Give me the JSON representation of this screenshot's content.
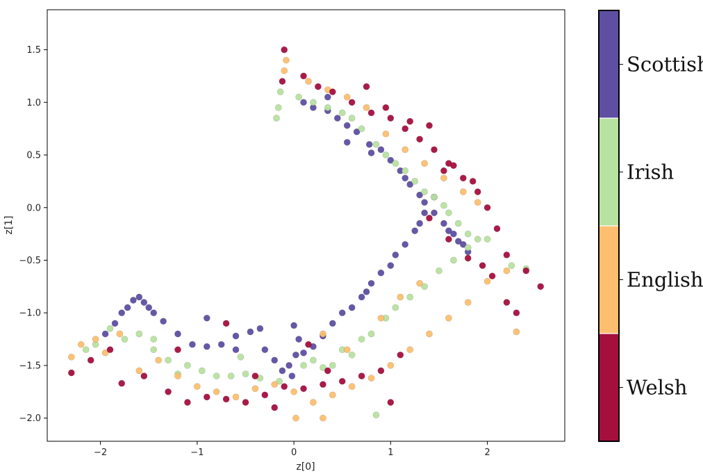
{
  "chart_data": {
    "type": "scatter",
    "title": "",
    "xlabel": "z[0]",
    "ylabel": "z[1]",
    "xlim": [
      -2.55,
      2.8
    ],
    "ylim": [
      -2.22,
      1.88
    ],
    "xticks": [
      -2,
      -1,
      0,
      1,
      2
    ],
    "xtick_labels": [
      "−2",
      "−1",
      "0",
      "1",
      "2"
    ],
    "yticks": [
      1.5,
      1.0,
      0.5,
      0.0,
      -0.5,
      -1.0,
      -1.5,
      -2.0
    ],
    "ytick_labels": [
      "1.5",
      "1.0",
      "0.5",
      "0.0",
      "−0.5",
      "−1.0",
      "−1.5",
      "−2.0"
    ],
    "grid": false,
    "legend": "colorbar-right",
    "colorbar": {
      "categories": [
        "Welsh",
        "English",
        "Irish",
        "Scottish"
      ],
      "colors": [
        "#a50f3e",
        "#fdbf6f",
        "#b8e2a0",
        "#5e4fa2"
      ],
      "order": "bottom-to-top"
    },
    "series": [
      {
        "name": "Scottish",
        "color": "#5e4fa2",
        "x": [
          -1.95,
          -1.85,
          -1.78,
          -1.72,
          -1.66,
          -1.6,
          -1.55,
          -1.5,
          -1.45,
          -1.35,
          -1.2,
          -1.05,
          -0.9,
          -0.75,
          -0.6,
          -0.45,
          -0.3,
          -0.2,
          -0.12,
          -0.05,
          0.02,
          0.05,
          0.0,
          -0.02,
          0.1,
          0.2,
          0.3,
          0.4,
          0.5,
          0.6,
          0.7,
          0.75,
          0.8,
          0.9,
          1.0,
          1.05,
          1.15,
          1.25,
          1.3,
          1.35,
          1.45,
          0.35,
          0.45,
          0.55,
          0.65,
          0.78,
          0.9,
          1.0,
          1.1,
          1.15,
          1.2,
          1.3,
          1.35,
          1.45,
          1.55,
          1.6,
          1.65,
          1.7,
          1.75,
          1.8,
          0.1,
          0.2,
          0.35,
          0.55,
          0.8,
          -0.35,
          -0.6,
          -0.9
        ],
        "y": [
          -1.2,
          -1.1,
          -1.0,
          -0.95,
          -0.88,
          -0.85,
          -0.9,
          -0.95,
          -1.0,
          -1.08,
          -1.2,
          -1.3,
          -1.32,
          -1.3,
          -1.22,
          -1.18,
          -1.35,
          -1.45,
          -1.55,
          -1.5,
          -1.4,
          -1.25,
          -1.12,
          -1.6,
          -1.38,
          -1.32,
          -1.22,
          -1.1,
          -1.0,
          -0.95,
          -0.85,
          -0.8,
          -0.72,
          -0.62,
          -0.55,
          -0.45,
          -0.35,
          -0.22,
          -0.15,
          -0.05,
          0.1,
          0.92,
          0.85,
          0.78,
          0.72,
          0.6,
          0.55,
          0.45,
          0.35,
          0.28,
          0.22,
          0.12,
          0.05,
          -0.05,
          -0.15,
          -0.22,
          -0.25,
          -0.32,
          -0.35,
          -0.42,
          1.0,
          0.95,
          1.05,
          0.62,
          0.52,
          -1.15,
          -1.35,
          -1.05
        ]
      },
      {
        "name": "Irish",
        "color": "#b8e2a0",
        "x": [
          -2.15,
          -2.05,
          -1.9,
          -1.75,
          -1.6,
          -1.45,
          -1.3,
          -1.1,
          -0.95,
          -0.8,
          -0.65,
          -0.5,
          -0.35,
          -0.15,
          -0.18,
          -0.16,
          -0.14,
          0.05,
          0.2,
          0.35,
          0.5,
          0.6,
          0.7,
          0.85,
          0.95,
          1.05,
          1.15,
          1.25,
          1.35,
          1.45,
          1.55,
          1.6,
          1.7,
          1.8,
          1.9,
          0.1,
          0.2,
          0.3,
          0.4,
          0.5,
          0.6,
          0.7,
          0.8,
          0.95,
          1.05,
          1.2,
          1.35,
          1.5,
          1.65,
          1.8,
          2.0,
          2.25,
          2.4,
          0.85,
          -1.2,
          -1.45,
          -0.55
        ],
        "y": [
          -1.35,
          -1.3,
          -1.15,
          -1.25,
          -1.2,
          -1.35,
          -1.45,
          -1.5,
          -1.55,
          -1.6,
          -1.6,
          -1.58,
          -1.62,
          -1.65,
          0.85,
          0.95,
          1.1,
          1.05,
          1.0,
          0.95,
          0.9,
          0.85,
          0.75,
          0.6,
          0.5,
          0.42,
          0.35,
          0.25,
          0.15,
          0.1,
          0.02,
          -0.05,
          -0.15,
          -0.25,
          -0.3,
          -1.5,
          -1.45,
          -1.52,
          -1.5,
          -1.35,
          -1.4,
          -1.25,
          -1.2,
          -1.05,
          -0.95,
          -0.85,
          -0.75,
          -0.6,
          -0.5,
          -0.38,
          -0.3,
          -0.55,
          -0.58,
          -1.97,
          -1.58,
          -1.25,
          -1.42
        ]
      },
      {
        "name": "English",
        "color": "#fdbf6f",
        "x": [
          -2.3,
          -2.2,
          -2.05,
          -1.95,
          -1.8,
          -1.6,
          -1.4,
          -1.2,
          -1.0,
          -0.8,
          -0.6,
          -0.4,
          -0.2,
          0.0,
          0.2,
          0.4,
          0.6,
          0.8,
          1.0,
          1.2,
          1.4,
          1.6,
          1.8,
          2.0,
          2.2,
          2.3,
          -0.1,
          -0.08,
          0.15,
          0.35,
          0.55,
          0.75,
          0.95,
          1.15,
          1.35,
          1.55,
          1.75,
          1.9,
          0.3,
          0.55,
          0.9,
          1.1,
          1.3,
          0.02,
          0.3
        ],
        "y": [
          -1.42,
          -1.3,
          -1.25,
          -1.38,
          -1.2,
          -1.55,
          -1.45,
          -1.6,
          -1.7,
          -1.75,
          -1.8,
          -1.72,
          -1.68,
          -1.75,
          -1.85,
          -1.78,
          -1.7,
          -1.62,
          -1.5,
          -1.35,
          -1.2,
          -1.05,
          -0.9,
          -0.7,
          -0.6,
          -1.18,
          1.3,
          1.4,
          1.2,
          1.12,
          1.05,
          0.95,
          0.7,
          0.55,
          0.42,
          0.28,
          0.15,
          0.05,
          -1.2,
          -1.35,
          -1.05,
          -0.85,
          -0.72,
          -2.0,
          -2.0
        ]
      },
      {
        "name": "Welsh",
        "color": "#a50f3e",
        "x": [
          -2.3,
          -2.1,
          -1.9,
          -1.78,
          -1.55,
          -1.3,
          -1.1,
          -0.9,
          -0.7,
          -0.5,
          -0.3,
          -0.1,
          0.1,
          0.3,
          0.5,
          0.7,
          0.9,
          1.0,
          1.1,
          -0.12,
          -0.1,
          0.1,
          0.25,
          0.4,
          0.6,
          0.8,
          1.0,
          1.15,
          1.3,
          1.45,
          1.6,
          1.75,
          1.9,
          2.0,
          2.1,
          2.2,
          2.4,
          2.55,
          1.4,
          1.6,
          1.8,
          1.95,
          2.05,
          2.2,
          2.3,
          0.75,
          0.95,
          1.2,
          1.4,
          1.55,
          1.65,
          1.85,
          -0.7,
          -0.2,
          0.35,
          -1.2,
          -0.4,
          0.15
        ],
        "y": [
          -1.57,
          -1.45,
          -1.35,
          -1.67,
          -1.6,
          -1.75,
          -1.85,
          -1.8,
          -1.82,
          -1.85,
          -1.78,
          -1.7,
          -1.72,
          -1.68,
          -1.65,
          -1.6,
          -1.55,
          -1.85,
          -1.4,
          1.2,
          1.5,
          1.25,
          1.15,
          1.1,
          1.0,
          0.9,
          0.85,
          0.75,
          0.65,
          0.55,
          0.42,
          0.28,
          0.15,
          0.0,
          -0.2,
          -0.45,
          -0.6,
          -0.75,
          -0.1,
          -0.3,
          -0.48,
          -0.55,
          -0.65,
          -0.9,
          -1.0,
          1.15,
          0.95,
          0.82,
          0.78,
          0.35,
          0.4,
          0.25,
          -1.1,
          -1.9,
          -1.55,
          -1.35,
          -1.6,
          -1.3
        ]
      }
    ]
  }
}
